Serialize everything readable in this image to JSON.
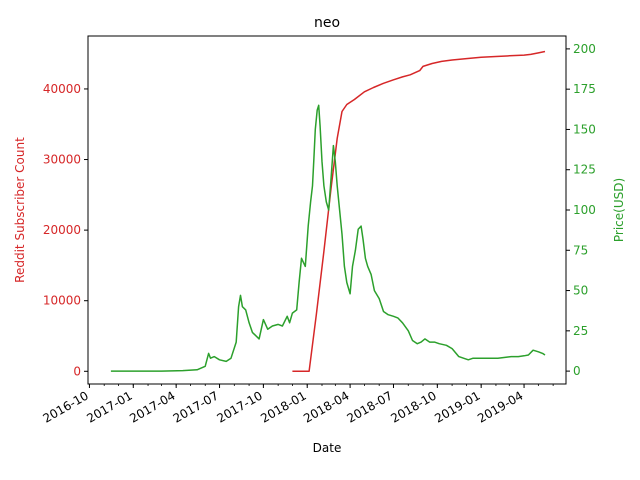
{
  "chart_data": {
    "type": "line",
    "title": "neo",
    "xlabel": "Date",
    "ylabel_left": "Reddit Subscriber Count",
    "ylabel_right": "Price(USD)",
    "xlim": [
      "2016-09-28",
      "2019-06-28"
    ],
    "ylim_left": [
      -1800,
      47500
    ],
    "ylim_right": [
      -8,
      208
    ],
    "x_ticks": [
      "2016-10-01",
      "2017-01-01",
      "2017-04-01",
      "2017-07-01",
      "2017-10-01",
      "2018-01-01",
      "2018-04-01",
      "2018-07-01",
      "2018-10-01",
      "2019-01-01",
      "2019-04-01"
    ],
    "x_tick_labels": [
      "2016-10",
      "2017-01",
      "2017-04",
      "2017-07",
      "2017-10",
      "2018-01",
      "2018-04",
      "2018-07",
      "2018-10",
      "2019-01",
      "2019-04"
    ],
    "y_ticks_left": [
      0,
      10000,
      20000,
      30000,
      40000
    ],
    "y_tick_labels_left": [
      "0",
      "10000",
      "20000",
      "30000",
      "40000"
    ],
    "y_ticks_right": [
      0,
      25,
      50,
      75,
      100,
      125,
      150,
      175,
      200
    ],
    "y_tick_labels_right": [
      "0",
      "25",
      "50",
      "75",
      "100",
      "125",
      "150",
      "175",
      "200"
    ],
    "colors": {
      "left": "#d62728",
      "right": "#2ca02c",
      "axes": "#000000"
    },
    "grid": false,
    "series": [
      {
        "axis": "left",
        "color": "#d62728",
        "x": [
          "2017-12-01",
          "2017-12-20",
          "2018-01-05",
          "2018-01-20",
          "2018-02-05",
          "2018-02-20",
          "2018-03-05",
          "2018-03-15",
          "2018-03-25",
          "2018-04-10",
          "2018-05-01",
          "2018-05-20",
          "2018-06-10",
          "2018-07-01",
          "2018-07-20",
          "2018-08-05",
          "2018-08-25",
          "2018-09-01",
          "2018-09-20",
          "2018-10-10",
          "2018-11-01",
          "2018-12-01",
          "2019-01-01",
          "2019-02-01",
          "2019-03-01",
          "2019-04-01",
          "2019-04-15",
          "2019-05-01",
          "2019-05-15"
        ],
        "values": [
          0,
          0,
          0,
          8000,
          17000,
          26000,
          33000,
          36800,
          37800,
          38500,
          39600,
          40200,
          40800,
          41300,
          41700,
          42000,
          42600,
          43200,
          43600,
          43900,
          44100,
          44300,
          44500,
          44600,
          44700,
          44800,
          44900,
          45100,
          45300
        ]
      },
      {
        "axis": "right",
        "color": "#2ca02c",
        "x": [
          "2016-11-15",
          "2017-01-01",
          "2017-03-01",
          "2017-04-15",
          "2017-05-15",
          "2017-06-01",
          "2017-06-08",
          "2017-06-12",
          "2017-06-20",
          "2017-07-01",
          "2017-07-15",
          "2017-07-25",
          "2017-08-05",
          "2017-08-10",
          "2017-08-14",
          "2017-08-18",
          "2017-08-25",
          "2017-09-01",
          "2017-09-08",
          "2017-09-15",
          "2017-09-22",
          "2017-10-01",
          "2017-10-10",
          "2017-10-20",
          "2017-11-01",
          "2017-11-10",
          "2017-11-20",
          "2017-11-25",
          "2017-12-01",
          "2017-12-10",
          "2017-12-15",
          "2017-12-20",
          "2017-12-28",
          "2018-01-03",
          "2018-01-08",
          "2018-01-12",
          "2018-01-15",
          "2018-01-18",
          "2018-01-22",
          "2018-01-25",
          "2018-01-28",
          "2018-02-01",
          "2018-02-05",
          "2018-02-10",
          "2018-02-15",
          "2018-02-20",
          "2018-02-25",
          "2018-03-01",
          "2018-03-05",
          "2018-03-10",
          "2018-03-15",
          "2018-03-20",
          "2018-03-25",
          "2018-04-01",
          "2018-04-06",
          "2018-04-12",
          "2018-04-18",
          "2018-04-24",
          "2018-04-28",
          "2018-05-03",
          "2018-05-08",
          "2018-05-15",
          "2018-05-22",
          "2018-06-01",
          "2018-06-10",
          "2018-06-20",
          "2018-07-01",
          "2018-07-10",
          "2018-07-20",
          "2018-08-01",
          "2018-08-10",
          "2018-08-20",
          "2018-08-28",
          "2018-09-05",
          "2018-09-15",
          "2018-09-25",
          "2018-10-05",
          "2018-10-20",
          "2018-11-01",
          "2018-11-15",
          "2018-11-25",
          "2018-12-05",
          "2018-12-15",
          "2019-01-01",
          "2019-01-20",
          "2019-02-05",
          "2019-02-20",
          "2019-03-05",
          "2019-03-20",
          "2019-04-01",
          "2019-04-10",
          "2019-04-20",
          "2019-05-01",
          "2019-05-10",
          "2019-05-15"
        ],
        "values": [
          0,
          0,
          0,
          0.3,
          0.8,
          3,
          11,
          8,
          9,
          7,
          6,
          8,
          18,
          40,
          47,
          40,
          38,
          30,
          24,
          22,
          20,
          32,
          26,
          28,
          29,
          28,
          34,
          30,
          36,
          38,
          55,
          70,
          65,
          90,
          105,
          115,
          132,
          150,
          162,
          165,
          152,
          130,
          115,
          105,
          100,
          120,
          140,
          130,
          115,
          100,
          85,
          65,
          55,
          48,
          65,
          75,
          88,
          90,
          82,
          70,
          65,
          60,
          50,
          45,
          37,
          35,
          34,
          33,
          30,
          25,
          19,
          17,
          18,
          20,
          18,
          18,
          17,
          16,
          14,
          9,
          8,
          7,
          8,
          8,
          8,
          8,
          8.5,
          9,
          9,
          9.5,
          10,
          13,
          12,
          11,
          10
        ]
      }
    ]
  }
}
